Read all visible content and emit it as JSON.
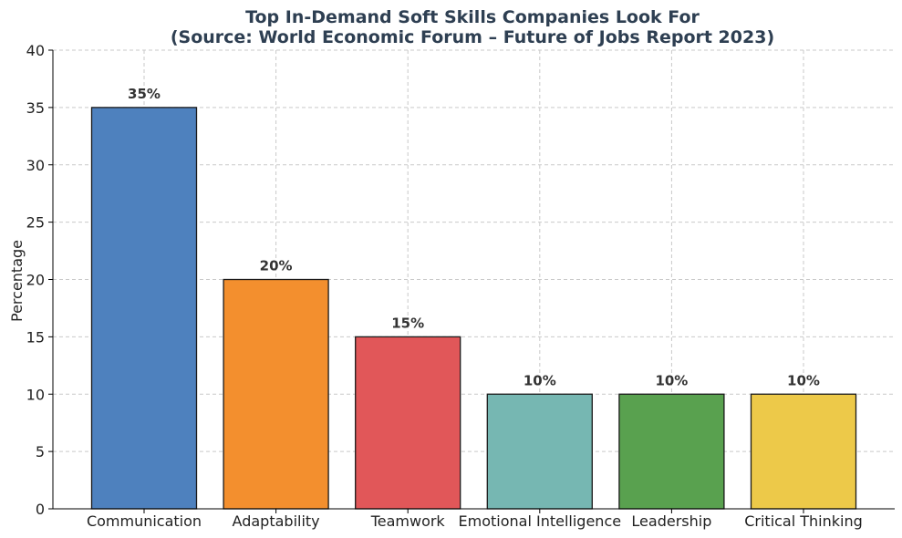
{
  "chart_data": {
    "type": "bar",
    "title": "Top In-Demand Soft Skills Companies Look For",
    "subtitle": "(Source: World Economic Forum – Future of Jobs Report 2023)",
    "xlabel": "",
    "ylabel": "Percentage",
    "categories": [
      "Communication",
      "Adaptability",
      "Teamwork",
      "Emotional Intelligence",
      "Leadership",
      "Critical Thinking"
    ],
    "values": [
      35,
      20,
      15,
      10,
      10,
      10
    ],
    "data_labels": [
      "35%",
      "20%",
      "15%",
      "10%",
      "10%",
      "10%"
    ],
    "colors": [
      "#4e81be",
      "#f38f2e",
      "#e15759",
      "#76b7b2",
      "#59a14f",
      "#edc949"
    ],
    "ylim": [
      0,
      40
    ],
    "yticks": [
      0,
      5,
      10,
      15,
      20,
      25,
      30,
      35,
      40
    ],
    "grid": true,
    "legend": "none"
  }
}
